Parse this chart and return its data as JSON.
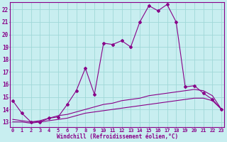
{
  "xlabel": "Windchill (Refroidissement éolien,°C)",
  "background_color": "#c8eef0",
  "grid_color": "#a0d8d8",
  "line_color": "#880088",
  "x_ticks": [
    0,
    1,
    2,
    3,
    4,
    5,
    6,
    7,
    8,
    9,
    10,
    11,
    12,
    13,
    14,
    15,
    16,
    17,
    18,
    19,
    20,
    21,
    22,
    23
  ],
  "y_ticks": [
    13,
    14,
    15,
    16,
    17,
    18,
    19,
    20,
    21,
    22
  ],
  "ylim": [
    12.6,
    22.6
  ],
  "xlim": [
    -0.3,
    23.3
  ],
  "series1_x": [
    0,
    1,
    2,
    3,
    4,
    5,
    6,
    7,
    8,
    9,
    10,
    11,
    12,
    13,
    14,
    15,
    16,
    17,
    18,
    19,
    20,
    21,
    22,
    23
  ],
  "series1_y": [
    14.7,
    13.7,
    13.0,
    13.0,
    13.3,
    13.4,
    14.4,
    15.5,
    17.3,
    15.2,
    19.3,
    19.2,
    19.5,
    19.0,
    21.0,
    22.3,
    21.9,
    22.4,
    21.0,
    15.8,
    15.9,
    15.3,
    14.8,
    14.0
  ],
  "series2_x": [
    0,
    1,
    2,
    3,
    4,
    5,
    6,
    7,
    8,
    9,
    10,
    11,
    12,
    13,
    14,
    15,
    16,
    17,
    18,
    19,
    20,
    21,
    22,
    23
  ],
  "series2_y": [
    13.2,
    13.1,
    13.0,
    13.1,
    13.3,
    13.5,
    13.6,
    13.8,
    14.0,
    14.2,
    14.4,
    14.5,
    14.7,
    14.8,
    14.9,
    15.1,
    15.2,
    15.3,
    15.4,
    15.5,
    15.6,
    15.5,
    15.1,
    14.0
  ],
  "series3_x": [
    0,
    1,
    2,
    3,
    4,
    5,
    6,
    7,
    8,
    9,
    10,
    11,
    12,
    13,
    14,
    15,
    16,
    17,
    18,
    19,
    20,
    21,
    22,
    23
  ],
  "series3_y": [
    13.0,
    13.0,
    12.9,
    13.0,
    13.1,
    13.2,
    13.3,
    13.5,
    13.7,
    13.8,
    13.9,
    14.0,
    14.1,
    14.2,
    14.3,
    14.4,
    14.5,
    14.6,
    14.7,
    14.8,
    14.9,
    14.9,
    14.7,
    14.0
  ]
}
